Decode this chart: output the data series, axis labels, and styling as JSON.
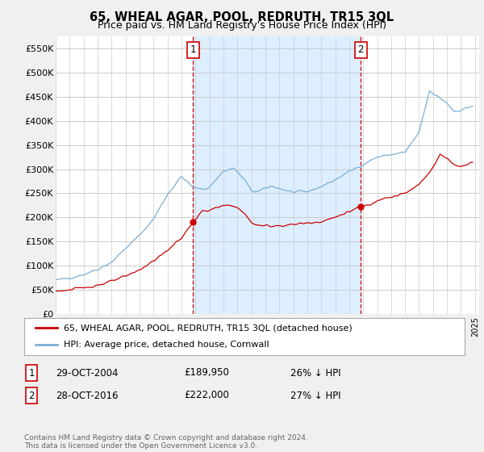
{
  "title": "65, WHEAL AGAR, POOL, REDRUTH, TR15 3QL",
  "subtitle": "Price paid vs. HM Land Registry's House Price Index (HPI)",
  "title_fontsize": 10.5,
  "subtitle_fontsize": 9,
  "ylabel_ticks": [
    "£0",
    "£50K",
    "£100K",
    "£150K",
    "£200K",
    "£250K",
    "£300K",
    "£350K",
    "£400K",
    "£450K",
    "£500K",
    "£550K"
  ],
  "ytick_values": [
    0,
    50000,
    100000,
    150000,
    200000,
    250000,
    300000,
    350000,
    400000,
    450000,
    500000,
    550000
  ],
  "ylim": [
    0,
    575000
  ],
  "xlim_start": 1995.0,
  "xlim_end": 2025.3,
  "background_color": "#f0f0f0",
  "plot_background": "#ffffff",
  "grid_color": "#cccccc",
  "red_line_color": "#cc0000",
  "blue_line_color": "#7aafd4",
  "shade_color": "#ddeeff",
  "marker1_x": 2004.83,
  "marker1_y": 189950,
  "marker1_label": "1",
  "marker2_x": 2016.83,
  "marker2_y": 222000,
  "marker2_label": "2",
  "legend_label_red": "65, WHEAL AGAR, POOL, REDRUTH, TR15 3QL (detached house)",
  "legend_label_blue": "HPI: Average price, detached house, Cornwall",
  "annotation1_date": "29-OCT-2004",
  "annotation1_price": "£189,950",
  "annotation1_hpi": "26% ↓ HPI",
  "annotation2_date": "28-OCT-2016",
  "annotation2_price": "£222,000",
  "annotation2_hpi": "27% ↓ HPI",
  "footer": "Contains HM Land Registry data © Crown copyright and database right 2024.\nThis data is licensed under the Open Government Licence v3.0."
}
